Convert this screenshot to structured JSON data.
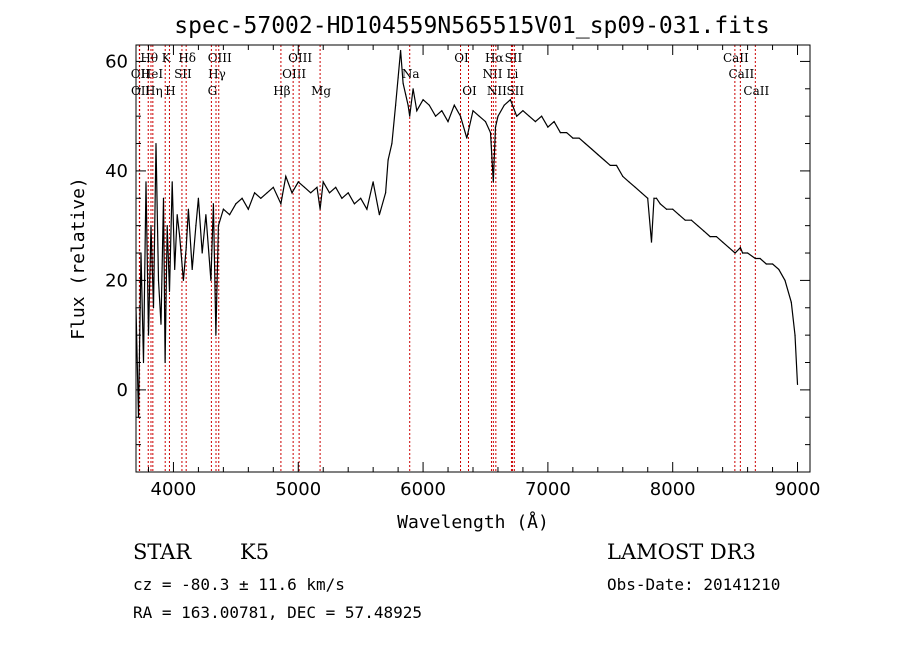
{
  "chart_data": {
    "type": "line",
    "title": "spec-57002-HD104559N565515V01_sp09-031.fits",
    "xlabel": "Wavelength (Å)",
    "ylabel": "Flux (relative)",
    "xlim": [
      3700,
      9100
    ],
    "ylim": [
      -15,
      63
    ],
    "xticks": [
      4000,
      5000,
      6000,
      7000,
      8000,
      9000
    ],
    "xtick_labels": [
      "4000",
      "5000",
      "6000",
      "7000",
      "8000",
      "9000"
    ],
    "yticks": [
      0,
      20,
      40,
      60
    ],
    "ytick_labels": [
      "0",
      "20",
      "40",
      "60"
    ],
    "series": [
      {
        "name": "spectrum",
        "x": [
          3700,
          3720,
          3740,
          3760,
          3780,
          3800,
          3820,
          3840,
          3860,
          3880,
          3900,
          3920,
          3933,
          3950,
          3968,
          3990,
          4010,
          4030,
          4050,
          4080,
          4102,
          4120,
          4150,
          4180,
          4200,
          4230,
          4260,
          4300,
          4320,
          4340,
          4360,
          4400,
          4450,
          4500,
          4550,
          4600,
          4650,
          4700,
          4750,
          4800,
          4861,
          4900,
          4950,
          5000,
          5050,
          5100,
          5150,
          5175,
          5200,
          5250,
          5300,
          5350,
          5400,
          5450,
          5500,
          5550,
          5600,
          5650,
          5700,
          5720,
          5750,
          5780,
          5800,
          5820,
          5840,
          5860,
          5880,
          5893,
          5920,
          5950,
          6000,
          6050,
          6100,
          6150,
          6200,
          6250,
          6300,
          6350,
          6400,
          6450,
          6500,
          6540,
          6563,
          6580,
          6600,
          6650,
          6700,
          6750,
          6800,
          6850,
          6900,
          6950,
          7000,
          7050,
          7100,
          7150,
          7200,
          7250,
          7300,
          7350,
          7400,
          7450,
          7500,
          7550,
          7600,
          7650,
          7700,
          7750,
          7800,
          7830,
          7850,
          7870,
          7900,
          7950,
          8000,
          8050,
          8100,
          8150,
          8200,
          8250,
          8300,
          8350,
          8400,
          8450,
          8500,
          8542,
          8560,
          8600,
          8662,
          8700,
          8750,
          8800,
          8850,
          8900,
          8950,
          8980,
          9000
        ],
        "values": [
          15,
          -5,
          25,
          5,
          38,
          10,
          30,
          15,
          45,
          20,
          12,
          35,
          5,
          30,
          18,
          38,
          22,
          32,
          28,
          20,
          26,
          33,
          22,
          30,
          35,
          25,
          32,
          20,
          34,
          10,
          30,
          33,
          32,
          34,
          35,
          33,
          36,
          35,
          36,
          37,
          34,
          39,
          36,
          38,
          37,
          36,
          37,
          33,
          38,
          36,
          37,
          35,
          36,
          34,
          35,
          33,
          38,
          32,
          36,
          42,
          45,
          52,
          57,
          62,
          56,
          54,
          52,
          50,
          55,
          51,
          53,
          52,
          50,
          51,
          49,
          52,
          50,
          46,
          51,
          50,
          49,
          47,
          38,
          48,
          50,
          52,
          53,
          50,
          51,
          50,
          49,
          50,
          48,
          49,
          47,
          47,
          46,
          46,
          45,
          44,
          43,
          42,
          41,
          41,
          39,
          38,
          37,
          36,
          35,
          27,
          35,
          35,
          34,
          33,
          33,
          32,
          31,
          31,
          30,
          29,
          28,
          28,
          27,
          26,
          25,
          26,
          25,
          25,
          24,
          24,
          23,
          23,
          22,
          20,
          16,
          10,
          1
        ]
      }
    ],
    "spectral_lines": [
      {
        "name": "OII",
        "wavelength": 3727,
        "row": 2
      },
      {
        "name": "OII",
        "wavelength": 3729,
        "row": 3
      },
      {
        "name": "Hθ",
        "wavelength": 3798,
        "row": 1
      },
      {
        "name": "HeI",
        "wavelength": 3820,
        "row": 2
      },
      {
        "name": "Hη",
        "wavelength": 3835,
        "row": 3
      },
      {
        "name": "K",
        "wavelength": 3934,
        "row": 1
      },
      {
        "name": "H",
        "wavelength": 3968,
        "row": 3
      },
      {
        "name": "SII",
        "wavelength": 4068,
        "row": 2
      },
      {
        "name": "Hδ",
        "wavelength": 4102,
        "row": 1
      },
      {
        "name": "OIII",
        "wavelength": 4363,
        "row": 1
      },
      {
        "name": "Hγ",
        "wavelength": 4341,
        "row": 2
      },
      {
        "name": "G",
        "wavelength": 4304,
        "row": 3
      },
      {
        "name": "Hβ",
        "wavelength": 4861,
        "row": 3
      },
      {
        "name": "OIII",
        "wavelength": 4959,
        "row": 2
      },
      {
        "name": "OIII",
        "wavelength": 5007,
        "row": 1
      },
      {
        "name": "Mg",
        "wavelength": 5175,
        "row": 3
      },
      {
        "name": "Na",
        "wavelength": 5893,
        "row": 2
      },
      {
        "name": "OI",
        "wavelength": 6300,
        "row": 1
      },
      {
        "name": "OI",
        "wavelength": 6364,
        "row": 3
      },
      {
        "name": "NII",
        "wavelength": 6548,
        "row": 2
      },
      {
        "name": "Hα",
        "wavelength": 6563,
        "row": 1
      },
      {
        "name": "NII",
        "wavelength": 6583,
        "row": 3
      },
      {
        "name": "SII",
        "wavelength": 6716,
        "row": 1
      },
      {
        "name": "Li",
        "wavelength": 6708,
        "row": 2
      },
      {
        "name": "SII",
        "wavelength": 6731,
        "row": 3
      },
      {
        "name": "CaII",
        "wavelength": 8498,
        "row": 1
      },
      {
        "name": "CaII",
        "wavelength": 8542,
        "row": 2
      },
      {
        "name": "CaII",
        "wavelength": 8662,
        "row": 3
      }
    ]
  },
  "info": {
    "object_class": "STAR",
    "subclass": "K5",
    "survey": "LAMOST DR3",
    "cz": "cz = -80.3 ± 11.6 km/s",
    "obs_date": "Obs-Date: 20141210",
    "coords": "RA = 163.00781, DEC =  57.48925"
  }
}
